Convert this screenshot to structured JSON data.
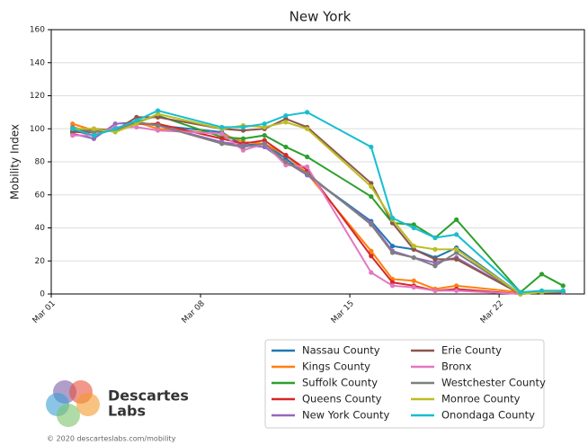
{
  "chart_data": {
    "type": "line",
    "title": "New York",
    "ylabel": "Mobility Index",
    "x": [
      "Mar 02",
      "Mar 03",
      "Mar 04",
      "Mar 05",
      "Mar 06",
      "Mar 09",
      "Mar 10",
      "Mar 11",
      "Mar 12",
      "Mar 13",
      "Mar 16",
      "Mar 17",
      "Mar 18",
      "Mar 19",
      "Mar 20",
      "Mar 23",
      "Mar 24",
      "Mar 25"
    ],
    "xlim": [
      "Mar 01",
      "Mar 26"
    ],
    "xticks": [
      "Mar 01",
      "Mar 08",
      "Mar 15",
      "Mar 22"
    ],
    "ylim": [
      0,
      160
    ],
    "yticks": [
      0,
      20,
      40,
      60,
      80,
      100,
      120,
      140,
      160
    ],
    "grid": true,
    "series": [
      {
        "name": "Nassau County",
        "color": "#1f77b4",
        "values": [
          99,
          96,
          100,
          104,
          102,
          98,
          90,
          91,
          82,
          72,
          44,
          29,
          27,
          22,
          28,
          0,
          1,
          1
        ]
      },
      {
        "name": "Kings County",
        "color": "#ff7f0e",
        "values": [
          103,
          99,
          99,
          104,
          100,
          97,
          92,
          91,
          84,
          73,
          26,
          9,
          8,
          3,
          5,
          1,
          1,
          1
        ]
      },
      {
        "name": "Suffolk County",
        "color": "#2ca02c",
        "values": [
          99,
          98,
          100,
          104,
          108,
          95,
          94,
          96,
          89,
          83,
          59,
          43,
          42,
          34,
          45,
          1,
          12,
          5
        ]
      },
      {
        "name": "Queens County",
        "color": "#d62728",
        "values": [
          98,
          98,
          99,
          103,
          103,
          94,
          91,
          93,
          84,
          75,
          23,
          7,
          5,
          2,
          3,
          0,
          1,
          1
        ]
      },
      {
        "name": "New York County",
        "color": "#9467bd",
        "values": [
          97,
          94,
          103,
          104,
          102,
          92,
          90,
          89,
          80,
          72,
          43,
          26,
          22,
          19,
          22,
          0,
          1,
          1
        ]
      },
      {
        "name": "Erie County",
        "color": "#8c564b",
        "values": [
          98,
          100,
          99,
          107,
          107,
          100,
          99,
          100,
          106,
          101,
          67,
          43,
          27,
          21,
          21,
          0,
          1,
          1
        ]
      },
      {
        "name": "Bronx",
        "color": "#e377c2",
        "values": [
          96,
          96,
          101,
          101,
          99,
          97,
          87,
          91,
          78,
          77,
          13,
          5,
          4,
          2,
          2,
          0,
          1,
          1
        ]
      },
      {
        "name": "Westchester County",
        "color": "#7f7f7f",
        "values": [
          101,
          98,
          99,
          104,
          102,
          91,
          89,
          91,
          80,
          73,
          42,
          25,
          22,
          17,
          25,
          0,
          1,
          1
        ]
      },
      {
        "name": "Monroe County",
        "color": "#bcbd22",
        "values": [
          100,
          100,
          98,
          103,
          109,
          100,
          102,
          101,
          104,
          100,
          65,
          45,
          29,
          27,
          27,
          0,
          1,
          2
        ]
      },
      {
        "name": "Onondaga County",
        "color": "#17becf",
        "values": [
          100,
          96,
          100,
          105,
          111,
          101,
          101,
          103,
          108,
          110,
          89,
          46,
          40,
          34,
          36,
          1,
          2,
          2
        ]
      }
    ]
  },
  "logo": {
    "lines": [
      "Descartes",
      "Labs"
    ]
  },
  "footer": "© 2020 descarteslabs.com/mobility"
}
